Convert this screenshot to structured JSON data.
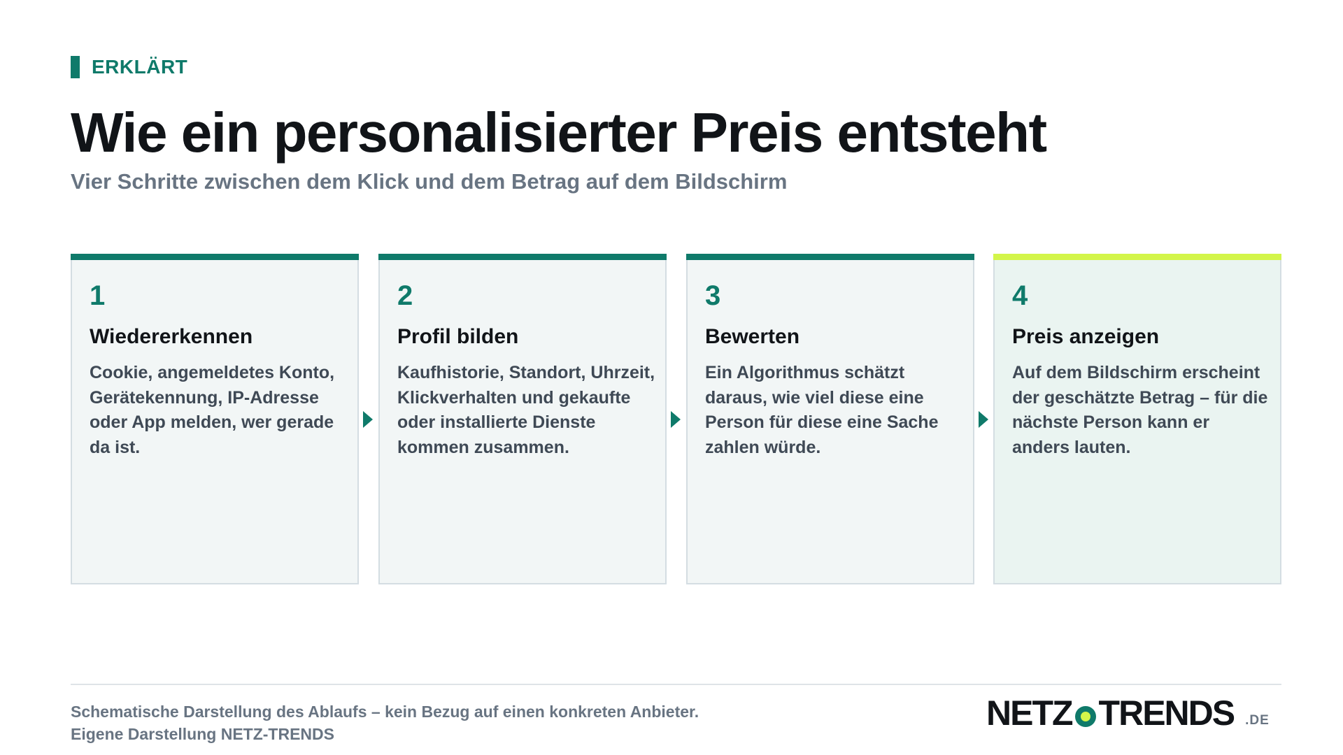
{
  "kicker": "ERKLÄRT",
  "title": "Wie ein personalisierter Preis entsteht",
  "subtitle": "Vier Schritte zwischen dem Klick und dem Betrag auf dem Bildschirm",
  "steps": [
    {
      "number": "1",
      "heading": "Wiedererkennen",
      "text": "Cookie, angemeldetes Konto, Gerätekennung, IP-Adresse oder App melden, wer gerade da ist."
    },
    {
      "number": "2",
      "heading": "Profil bilden",
      "text": "Kaufhistorie, Standort, Uhrzeit, Klickverhalten und gekaufte oder installierte Dienste kommen zusammen."
    },
    {
      "number": "3",
      "heading": "Bewerten",
      "text": "Ein Algorithmus schätzt daraus, wie viel diese eine Person für diese eine Sache zahlen würde."
    },
    {
      "number": "4",
      "heading": "Preis anzeigen",
      "text": "Auf dem Bildschirm erscheint der geschätzte Betrag – für die nächste Person kann er anders lauten."
    }
  ],
  "footnote": {
    "line1": "Schematische Darstellung des Ablaufs – kein Bezug auf einen konkreten Anbieter.",
    "line2": "Eigene Darstellung NETZ-TRENDS"
  },
  "logo": {
    "part1": "NETZ",
    "part2": "TRENDS",
    "tld": ".DE"
  },
  "colors": {
    "accent": "#0f7a6a",
    "highlight": "#d3f54a",
    "text": "#111418",
    "muted": "#687482",
    "card_bg": "#f2f6f6",
    "card_border": "#d4dde2"
  }
}
